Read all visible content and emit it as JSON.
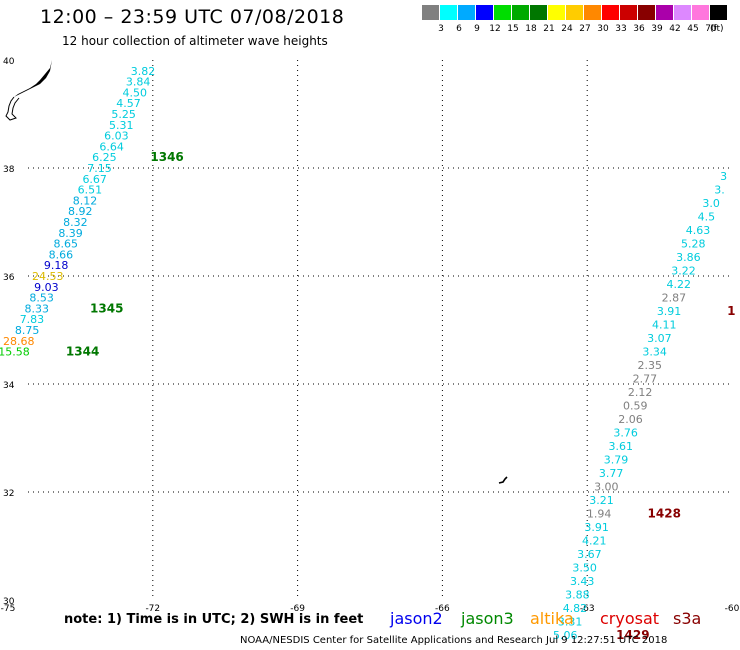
{
  "header": {
    "title": "12:00 – 23:59 UTC 07/08/2018",
    "subtitle": "12 hour collection of altimeter wave heights"
  },
  "colorbar": {
    "unit": "(ft)",
    "bins": [
      {
        "label": "3",
        "color": "#808080"
      },
      {
        "label": "6",
        "color": "#00ffff"
      },
      {
        "label": "9",
        "color": "#00aaff"
      },
      {
        "label": "12",
        "color": "#0000ff"
      },
      {
        "label": "15",
        "color": "#00dd00"
      },
      {
        "label": "18",
        "color": "#00aa00"
      },
      {
        "label": "21",
        "color": "#007700"
      },
      {
        "label": "24",
        "color": "#ffff00"
      },
      {
        "label": "27",
        "color": "#ffcc00"
      },
      {
        "label": "30",
        "color": "#ff8800"
      },
      {
        "label": "33",
        "color": "#ff0000"
      },
      {
        "label": "36",
        "color": "#cc0000"
      },
      {
        "label": "39",
        "color": "#880000"
      },
      {
        "label": "42",
        "color": "#aa00aa"
      },
      {
        "label": "45",
        "color": "#dd88ff"
      },
      {
        "label": "70",
        "color": "#ff77dd"
      },
      {
        "label": "",
        "color": "#000000"
      }
    ]
  },
  "map": {
    "lon_range": [
      -75,
      -60
    ],
    "lat_range": [
      30,
      40
    ],
    "lon_labels": [
      "-75",
      "-72",
      "-69",
      "-66",
      "-63",
      "-60"
    ],
    "lat_labels": [
      "30",
      "32",
      "34",
      "36",
      "38",
      "40"
    ],
    "track_west": [
      {
        "lat": 39.8,
        "lon": -71.95,
        "v": "3.82",
        "c": "#00ccdd"
      },
      {
        "lat": 39.6,
        "lon": -72.05,
        "v": "3.84",
        "c": "#00ccdd"
      },
      {
        "lat": 39.4,
        "lon": -72.12,
        "v": "4.50",
        "c": "#00ccdd"
      },
      {
        "lat": 39.2,
        "lon": -72.25,
        "v": "4.57",
        "c": "#00ccdd"
      },
      {
        "lat": 39.0,
        "lon": -72.35,
        "v": "5.25",
        "c": "#00ccdd"
      },
      {
        "lat": 38.8,
        "lon": -72.4,
        "v": "5.31",
        "c": "#00ccdd"
      },
      {
        "lat": 38.6,
        "lon": -72.5,
        "v": "6.03",
        "c": "#00ccdd"
      },
      {
        "lat": 38.4,
        "lon": -72.6,
        "v": "6.64",
        "c": "#00ccdd"
      },
      {
        "lat": 38.2,
        "lon": -72.75,
        "v": "6.25",
        "c": "#00ccdd"
      },
      {
        "lat": 38.0,
        "lon": -72.85,
        "v": "7.15",
        "c": "#00ccdd"
      },
      {
        "lat": 37.8,
        "lon": -72.95,
        "v": "6.67",
        "c": "#00ccdd"
      },
      {
        "lat": 37.6,
        "lon": -73.05,
        "v": "6.51",
        "c": "#00ccdd"
      },
      {
        "lat": 37.4,
        "lon": -73.15,
        "v": "8.12",
        "c": "#00aadd"
      },
      {
        "lat": 37.2,
        "lon": -73.25,
        "v": "8.92",
        "c": "#00aadd"
      },
      {
        "lat": 37.0,
        "lon": -73.35,
        "v": "8.32",
        "c": "#00aadd"
      },
      {
        "lat": 36.8,
        "lon": -73.45,
        "v": "8.39",
        "c": "#00aadd"
      },
      {
        "lat": 36.6,
        "lon": -73.55,
        "v": "8.65",
        "c": "#00aadd"
      },
      {
        "lat": 36.4,
        "lon": -73.65,
        "v": "8.66",
        "c": "#00aadd"
      },
      {
        "lat": 36.2,
        "lon": -73.75,
        "v": "9.18",
        "c": "#0000cc"
      },
      {
        "lat": 36.0,
        "lon": -73.85,
        "v": "24.53",
        "c": "#ddbb00"
      },
      {
        "lat": 35.8,
        "lon": -73.95,
        "v": "9.03",
        "c": "#0000cc"
      },
      {
        "lat": 35.6,
        "lon": -74.05,
        "v": "8.53",
        "c": "#00aadd"
      },
      {
        "lat": 35.4,
        "lon": -74.15,
        "v": "8.33",
        "c": "#00aadd"
      },
      {
        "lat": 35.2,
        "lon": -74.25,
        "v": "7.83",
        "c": "#00ccdd"
      },
      {
        "lat": 35.0,
        "lon": -74.35,
        "v": "8.75",
        "c": "#00aadd"
      },
      {
        "lat": 34.8,
        "lon": -74.45,
        "v": "28.68",
        "c": "#ff8800"
      },
      {
        "lat": 34.6,
        "lon": -74.55,
        "v": "15.58",
        "c": "#00cc00"
      }
    ],
    "track_east": [
      {
        "lat": 37.85,
        "lon": -60.1,
        "v": "3",
        "c": "#00ccdd"
      },
      {
        "lat": 37.6,
        "lon": -60.15,
        "v": "3.",
        "c": "#00ccdd"
      },
      {
        "lat": 37.35,
        "lon": -60.25,
        "v": "3.0",
        "c": "#00ccdd"
      },
      {
        "lat": 37.1,
        "lon": -60.35,
        "v": "4.5",
        "c": "#00ccdd"
      },
      {
        "lat": 36.85,
        "lon": -60.45,
        "v": "4.63",
        "c": "#00ccdd"
      },
      {
        "lat": 36.6,
        "lon": -60.55,
        "v": "5.28",
        "c": "#00ccdd"
      },
      {
        "lat": 36.35,
        "lon": -60.65,
        "v": "3.86",
        "c": "#00ccdd"
      },
      {
        "lat": 36.1,
        "lon": -60.75,
        "v": "3.22",
        "c": "#00ccdd"
      },
      {
        "lat": 35.85,
        "lon": -60.85,
        "v": "4.22",
        "c": "#00ccdd"
      },
      {
        "lat": 35.6,
        "lon": -60.95,
        "v": "2.87",
        "c": "#808080"
      },
      {
        "lat": 35.35,
        "lon": -61.05,
        "v": "3.91",
        "c": "#00ccdd"
      },
      {
        "lat": 35.1,
        "lon": -61.15,
        "v": "4.11",
        "c": "#00ccdd"
      },
      {
        "lat": 34.85,
        "lon": -61.25,
        "v": "3.07",
        "c": "#00ccdd"
      },
      {
        "lat": 34.6,
        "lon": -61.35,
        "v": "3.34",
        "c": "#00ccdd"
      },
      {
        "lat": 34.35,
        "lon": -61.45,
        "v": "2.35",
        "c": "#808080"
      },
      {
        "lat": 34.1,
        "lon": -61.55,
        "v": "2.77",
        "c": "#808080"
      },
      {
        "lat": 33.85,
        "lon": -61.65,
        "v": "2.12",
        "c": "#808080"
      },
      {
        "lat": 33.6,
        "lon": -61.75,
        "v": "0.59",
        "c": "#808080"
      },
      {
        "lat": 33.35,
        "lon": -61.85,
        "v": "2.06",
        "c": "#808080"
      },
      {
        "lat": 33.1,
        "lon": -61.95,
        "v": "3.76",
        "c": "#00ccdd"
      },
      {
        "lat": 32.85,
        "lon": -62.05,
        "v": "3.61",
        "c": "#00ccdd"
      },
      {
        "lat": 32.6,
        "lon": -62.15,
        "v": "3.79",
        "c": "#00ccdd"
      },
      {
        "lat": 32.35,
        "lon": -62.25,
        "v": "3.77",
        "c": "#00ccdd"
      },
      {
        "lat": 32.1,
        "lon": -62.35,
        "v": "3.00",
        "c": "#808080"
      },
      {
        "lat": 31.85,
        "lon": -62.45,
        "v": "3.21",
        "c": "#00ccdd"
      },
      {
        "lat": 31.6,
        "lon": -62.5,
        "v": "1.94",
        "c": "#808080"
      },
      {
        "lat": 31.35,
        "lon": -62.55,
        "v": "3.91",
        "c": "#00ccdd"
      },
      {
        "lat": 31.1,
        "lon": -62.6,
        "v": "4.21",
        "c": "#00ccdd"
      },
      {
        "lat": 30.85,
        "lon": -62.7,
        "v": "3.67",
        "c": "#00ccdd"
      },
      {
        "lat": 30.6,
        "lon": -62.8,
        "v": "3.50",
        "c": "#00ccdd"
      },
      {
        "lat": 30.35,
        "lon": -62.85,
        "v": "3.43",
        "c": "#00ccdd"
      },
      {
        "lat": 30.1,
        "lon": -62.95,
        "v": "3.88",
        "c": "#00ccdd"
      },
      {
        "lat": 29.85,
        "lon": -63.0,
        "v": "4.82",
        "c": "#00ccdd"
      },
      {
        "lat": 29.6,
        "lon": -63.1,
        "v": "3.31",
        "c": "#00ccdd"
      },
      {
        "lat": 29.35,
        "lon": -63.2,
        "v": "5.06",
        "c": "#00ccdd"
      }
    ],
    "time_labels": [
      {
        "lat": 38.2,
        "lon": -72.05,
        "t": "1346",
        "c": "#007700"
      },
      {
        "lat": 35.4,
        "lon": -73.3,
        "t": "1345",
        "c": "#007700"
      },
      {
        "lat": 34.6,
        "lon": -73.8,
        "t": "1344",
        "c": "#007700"
      },
      {
        "lat": 31.6,
        "lon": -61.75,
        "t": "1428",
        "c": "#880000"
      },
      {
        "lat": 29.35,
        "lon": -62.4,
        "t": "1429",
        "c": "#880000"
      },
      {
        "lat": 35.35,
        "lon": -60.1,
        "t": "1",
        "c": "#880000"
      }
    ]
  },
  "note": "note:  1) Time is in UTC;  2) SWH is in feet",
  "legend": [
    {
      "name": "jason2",
      "color": "#0000ee"
    },
    {
      "name": "jason3",
      "color": "#008800"
    },
    {
      "name": "altika",
      "color": "#ff9900"
    },
    {
      "name": "cryosat",
      "color": "#dd0000"
    },
    {
      "name": "s3a",
      "color": "#880000"
    }
  ],
  "footer": "NOAA/NESDIS Center for Satellite Applications and Research    Jul  9 12:27:51 UTC 2018"
}
